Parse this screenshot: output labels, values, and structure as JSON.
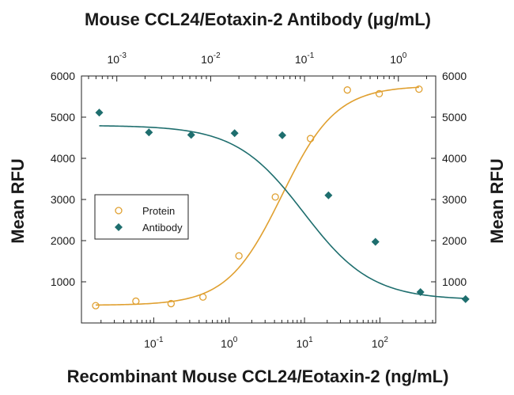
{
  "chart_data": {
    "type": "scatter",
    "title": "Mouse CCL24/Eotaxin-2 Antibody (μg/mL)",
    "xlabel": "Recombinant Mouse CCL24/Eotaxin-2 (ng/mL)",
    "ylabel": "Mean RFU",
    "ylabel_right": "Mean RFU",
    "x_scale": "log",
    "x_top_scale": "log",
    "xlim": [
      0.011,
      550
    ],
    "x_top_lim": [
      0.00042,
      2.5
    ],
    "ylim": [
      0,
      6000
    ],
    "y_ticks": [
      1000,
      2000,
      3000,
      4000,
      5000,
      6000
    ],
    "y_tick_labels": [
      "1000",
      "2000",
      "3000",
      "4000",
      "5000",
      "6000"
    ],
    "x_bottom_ticks": [
      {
        "value": 0.1,
        "base": "10",
        "exp": "-1"
      },
      {
        "value": 1,
        "base": "10",
        "exp": "0"
      },
      {
        "value": 10,
        "base": "10",
        "exp": "1"
      },
      {
        "value": 100,
        "base": "10",
        "exp": "2"
      }
    ],
    "x_top_ticks": [
      {
        "value": 0.001,
        "base": "10",
        "exp": "-3"
      },
      {
        "value": 0.01,
        "base": "10",
        "exp": "-2"
      },
      {
        "value": 0.1,
        "base": "10",
        "exp": "-1"
      },
      {
        "value": 1,
        "base": "10",
        "exp": "0"
      }
    ],
    "grid": false,
    "legend_position": "left",
    "series": [
      {
        "name": "Protein",
        "axis": "bottom",
        "marker": "open-circle",
        "color": "#e0a030",
        "x": [
          0.017,
          0.058,
          0.17,
          0.45,
          1.35,
          4.1,
          12,
          37,
          98,
          330
        ],
        "y": [
          420,
          530,
          470,
          630,
          1630,
          3060,
          4480,
          5660,
          5570,
          5680
        ],
        "fit": {
          "bottom": 430,
          "top": 5760,
          "ec50": 5.0,
          "hill": 1.2
        }
      },
      {
        "name": "Antibody",
        "axis": "top",
        "marker": "filled-diamond",
        "color": "#1e6e6e",
        "x": [
          0.00065,
          0.0022,
          0.0062,
          0.018,
          0.058,
          0.18,
          0.57,
          1.72
        ],
        "y": [
          5110,
          4630,
          4570,
          4610,
          4560,
          3100,
          1970,
          750
        ],
        "y_last": 580,
        "x_last": 5.2,
        "fit": {
          "bottom": 560,
          "top": 4800,
          "ic50": 0.098,
          "hill": 1.2
        }
      }
    ]
  }
}
